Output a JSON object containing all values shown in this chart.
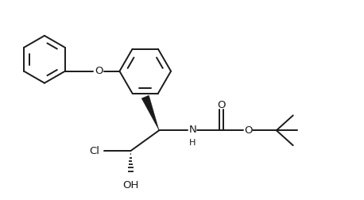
{
  "bg_color": "#ffffff",
  "line_color": "#1a1a1a",
  "line_width": 1.4,
  "font_size": 9.5,
  "figsize": [
    4.58,
    2.52
  ],
  "dpi": 100,
  "xlim": [
    0,
    9.16
  ],
  "ylim": [
    0,
    5.04
  ]
}
